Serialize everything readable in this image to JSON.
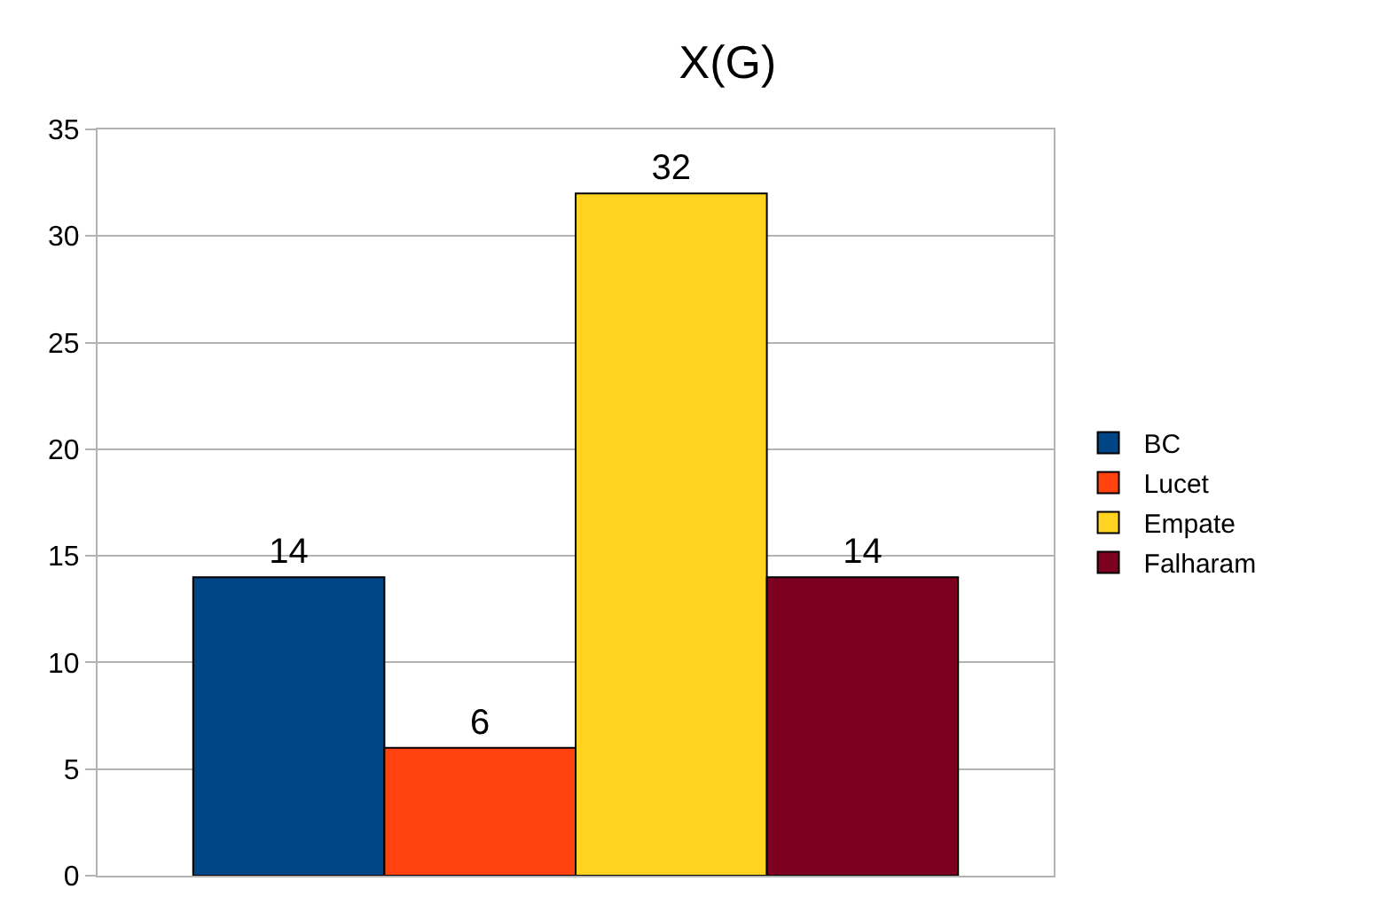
{
  "chart_data": {
    "type": "bar",
    "title": "X(G)",
    "categories": [
      null
    ],
    "series": [
      {
        "name": "BC",
        "color": "#004586",
        "values": [
          14
        ]
      },
      {
        "name": "Lucet",
        "color": "#ff420e",
        "values": [
          6
        ]
      },
      {
        "name": "Empate",
        "color": "#ffd320",
        "values": [
          32
        ]
      },
      {
        "name": "Falharam",
        "color": "#7e0021",
        "values": [
          14
        ]
      }
    ],
    "ylim": [
      0,
      35
    ],
    "yticks": [
      0,
      5,
      10,
      15,
      20,
      25,
      30,
      35
    ],
    "grid": "y",
    "legend": "right",
    "data_labels": true,
    "tick_labels": "y"
  }
}
